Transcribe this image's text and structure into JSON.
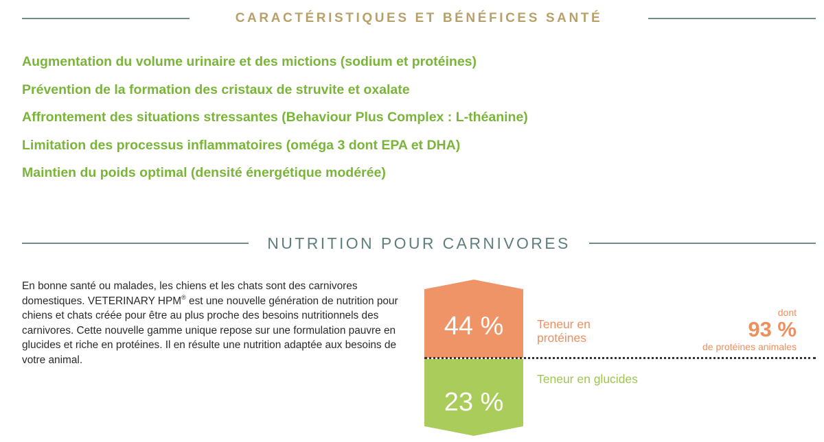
{
  "health_section": {
    "title": "CARACTÉRISTIQUES ET BÉNÉFICES SANTÉ",
    "benefits": [
      "Augmentation du volume urinaire et des mictions (sodium et protéines)",
      "Prévention de la formation des cristaux de struvite et oxalate",
      "Affrontement des situations stressantes (Behaviour Plus Complex : L-théanine)",
      "Limitation des processus inflammatoires (oméga 3 dont EPA et DHA)",
      "Maintien du poids optimal (densité énergétique modérée)"
    ]
  },
  "nutrition_section": {
    "title": "NUTRITION POUR CARNIVORES",
    "intro": {
      "part1": "En bonne santé ou malades, les chiens et les chats sont des carnivores domestiques. VETERINARY HPM",
      "registered": "®",
      "part2": " est une nouvelle génération de nutrition pour chiens et chats créée pour être au plus proche des besoins nutritionnels des carnivores. Cette nouvelle gamme unique repose sur une formulation pauvre en glucides et riche en protéines. Il en résulte une nutrition adaptée aux besoins de votre animal."
    },
    "protein": {
      "value": "44 %",
      "label_line1": "Teneur en",
      "label_line2": "protéines"
    },
    "carbs": {
      "value": "23 %",
      "label": "Teneur en glucides"
    },
    "animal_protein": {
      "prefix": "dont",
      "value": "93 %",
      "suffix": "de protéines animales"
    }
  },
  "colors": {
    "heading_gold": "#b8a06a",
    "heading_teal": "#5e7e80",
    "benefit_green": "#7ab53a",
    "protein_orange": "#ee9466",
    "carb_green": "#a9cc5b"
  }
}
